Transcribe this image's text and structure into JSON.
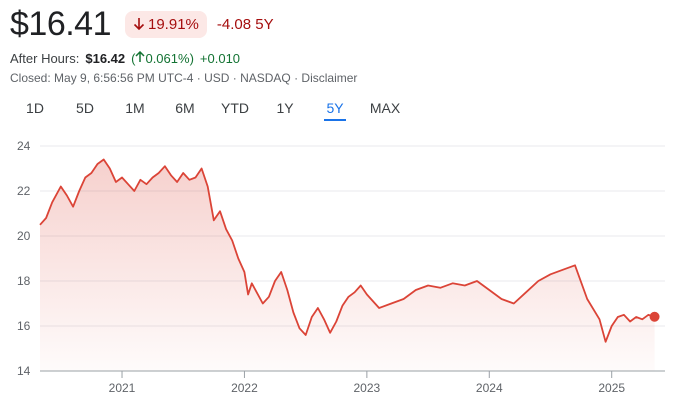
{
  "quote": {
    "price": "$16.41",
    "change_pct": "19.91%",
    "change_abs": "-4.08",
    "range_label": "5Y",
    "after_hours_label": "After Hours:",
    "after_hours_price": "$16.42",
    "after_hours_pct_open": "(",
    "after_hours_pct": "0.061%",
    "after_hours_pct_close": ")",
    "after_hours_abs": "+0.010",
    "closed_info": "Closed: May 9, 6:56:56 PM UTC-4 · USD · NASDAQ · Disclaimer"
  },
  "tabs": [
    {
      "label": "1D"
    },
    {
      "label": "5D"
    },
    {
      "label": "1M"
    },
    {
      "label": "6M"
    },
    {
      "label": "YTD"
    },
    {
      "label": "1Y"
    },
    {
      "label": "5Y"
    },
    {
      "label": "MAX"
    }
  ],
  "active_tab": "5Y",
  "colors": {
    "line": "#db4437",
    "negative": "#a50e0e",
    "positive": "#137333",
    "accent": "#1a73e8"
  },
  "icons": {
    "down": "arrow-down-icon",
    "up": "arrow-up-icon"
  },
  "chart_data": {
    "type": "area",
    "ylim": [
      14,
      24
    ],
    "yticks": [
      14,
      16,
      18,
      20,
      22,
      24
    ],
    "xlim": [
      2020.33,
      2025.37
    ],
    "xticks": [
      {
        "label": "2021",
        "value": 2021
      },
      {
        "label": "2022",
        "value": 2022
      },
      {
        "label": "2023",
        "value": 2023
      },
      {
        "label": "2024",
        "value": 2024
      },
      {
        "label": "2025",
        "value": 2025
      }
    ],
    "series": [
      {
        "x": [
          2020.33,
          2020.38,
          2020.43,
          2020.5,
          2020.55,
          2020.6,
          2020.65,
          2020.7,
          2020.75,
          2020.8,
          2020.85,
          2020.9,
          2020.95,
          2021.0,
          2021.05,
          2021.1,
          2021.15,
          2021.2,
          2021.25,
          2021.3,
          2021.35,
          2021.4,
          2021.45,
          2021.5,
          2021.55,
          2021.6,
          2021.65,
          2021.7,
          2021.75,
          2021.8,
          2021.85,
          2021.9,
          2021.95,
          2022.0,
          2022.03,
          2022.06,
          2022.1,
          2022.15,
          2022.2,
          2022.25,
          2022.3,
          2022.35,
          2022.4,
          2022.45,
          2022.5,
          2022.55,
          2022.6,
          2022.65,
          2022.7,
          2022.75,
          2022.8,
          2022.85,
          2022.9,
          2022.95,
          2023.0,
          2023.1,
          2023.2,
          2023.3,
          2023.4,
          2023.5,
          2023.6,
          2023.7,
          2023.8,
          2023.9,
          2024.0,
          2024.1,
          2024.2,
          2024.3,
          2024.4,
          2024.5,
          2024.6,
          2024.7,
          2024.8,
          2024.9,
          2024.95,
          2025.0,
          2025.05,
          2025.1,
          2025.15,
          2025.2,
          2025.25,
          2025.3,
          2025.35
        ],
        "y": [
          20.5,
          20.8,
          21.5,
          22.2,
          21.8,
          21.3,
          22.0,
          22.6,
          22.8,
          23.2,
          23.4,
          23.0,
          22.4,
          22.6,
          22.3,
          22.0,
          22.5,
          22.3,
          22.6,
          22.8,
          23.1,
          22.7,
          22.4,
          22.8,
          22.5,
          22.6,
          23.0,
          22.2,
          20.7,
          21.1,
          20.3,
          19.8,
          19.0,
          18.4,
          17.4,
          17.9,
          17.5,
          17.0,
          17.3,
          18.0,
          18.4,
          17.6,
          16.6,
          15.9,
          15.6,
          16.4,
          16.8,
          16.3,
          15.7,
          16.2,
          16.9,
          17.3,
          17.5,
          17.8,
          17.4,
          16.8,
          17.0,
          17.2,
          17.6,
          17.8,
          17.7,
          17.9,
          17.8,
          18.0,
          17.6,
          17.2,
          17.0,
          17.5,
          18.0,
          18.3,
          18.5,
          18.7,
          17.2,
          16.3,
          15.3,
          16.0,
          16.4,
          16.5,
          16.2,
          16.4,
          16.3,
          16.5,
          16.41
        ]
      }
    ]
  }
}
